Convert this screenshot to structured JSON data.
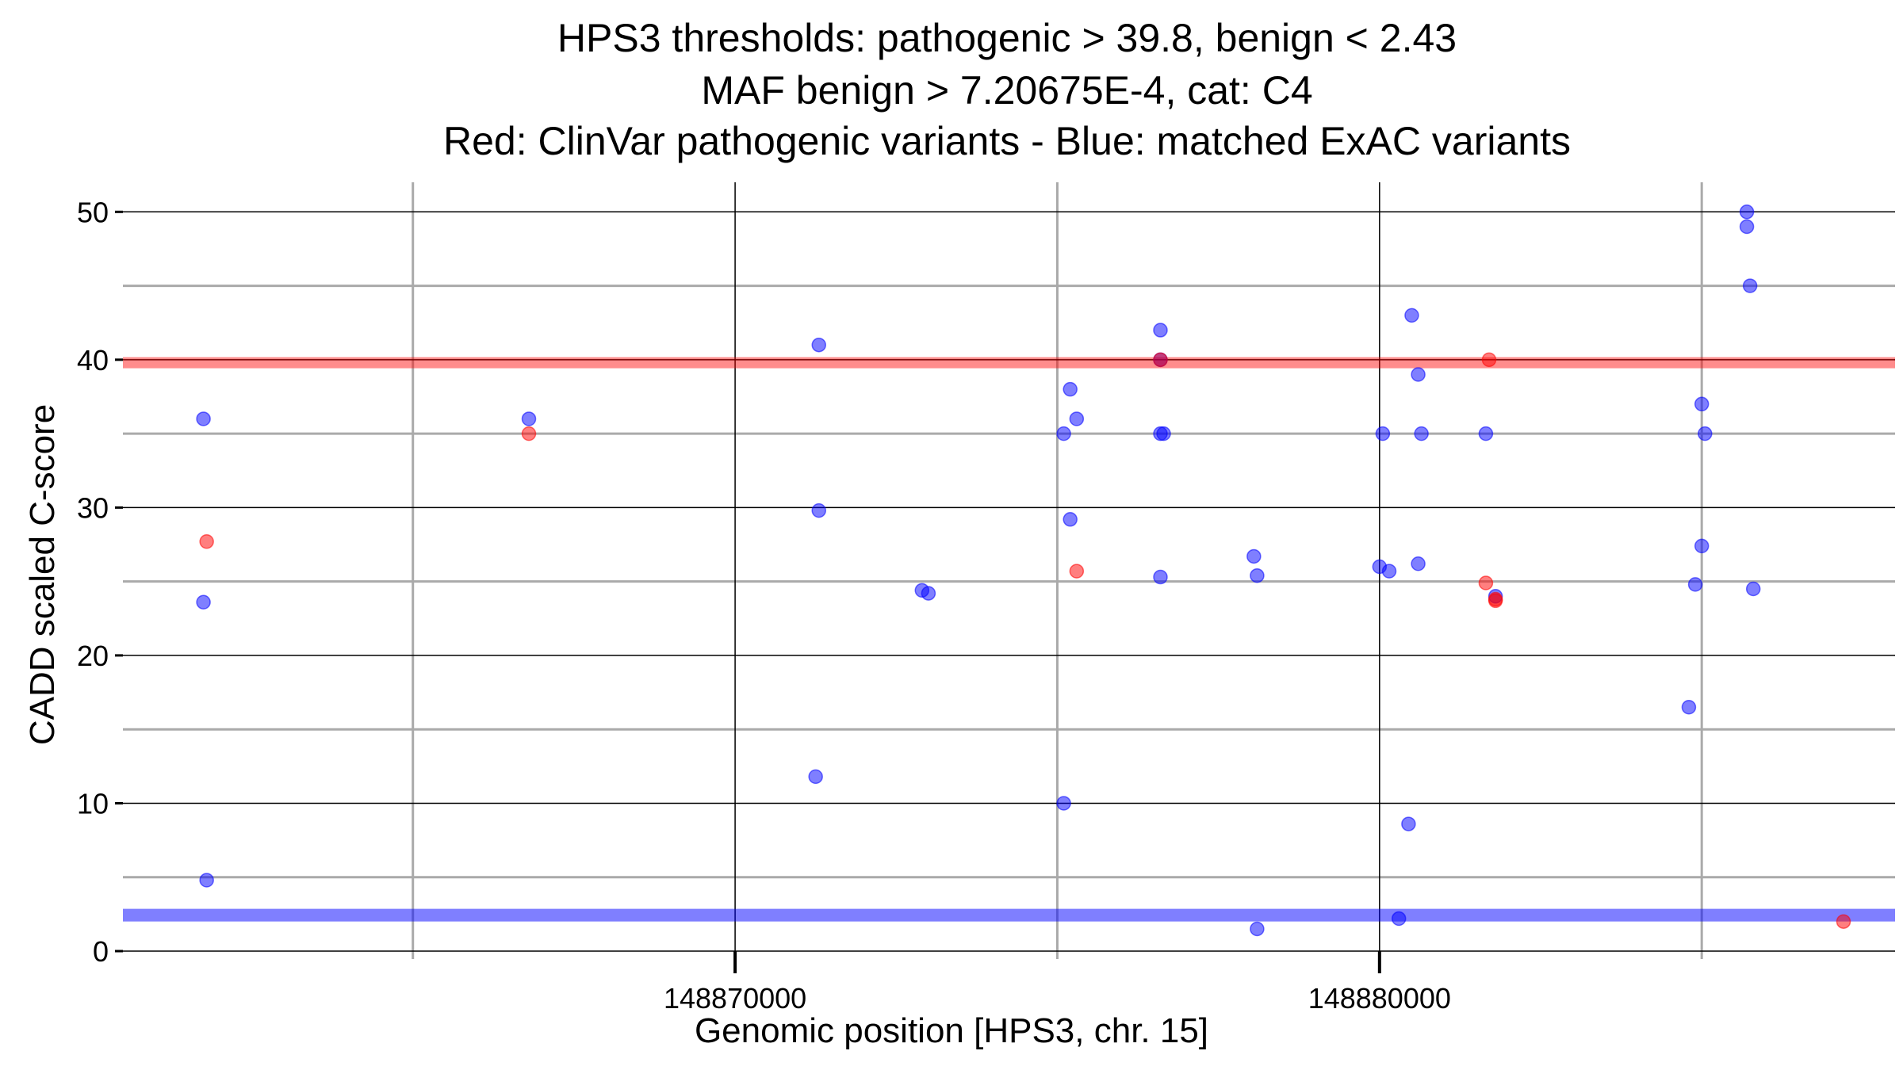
{
  "chart_data": {
    "type": "scatter",
    "title": [
      "HPS3 thresholds: pathogenic > 39.8, benign < 2.43",
      "MAF benign > 7.20675E-4, cat: C4",
      "Red: ClinVar pathogenic variants - Blue: matched ExAC variants"
    ],
    "xlabel": "Genomic position [HPS3, chr. 15]",
    "ylabel": "CADD scaled C-score",
    "xlim": [
      148860500,
      148888000
    ],
    "ylim": [
      0,
      52
    ],
    "x_ticks": [
      148870000,
      148880000
    ],
    "y_ticks": [
      0,
      10,
      20,
      30,
      40,
      50
    ],
    "grid": true,
    "thresholds": {
      "pathogenic": {
        "value": 39.8,
        "color": "#ff0000"
      },
      "benign": {
        "value": 2.43,
        "color": "#0000ff"
      }
    },
    "series": [
      {
        "color": "#ff0000",
        "points": [
          [
            148861800,
            27.7
          ],
          [
            148866800,
            35
          ],
          [
            148875300,
            25.7
          ],
          [
            148876600,
            40
          ],
          [
            148881650,
            24.9
          ],
          [
            148881700,
            40
          ],
          [
            148881800,
            23.7
          ],
          [
            148881800,
            23.8
          ],
          [
            148887200,
            2
          ]
        ]
      },
      {
        "color": "#0000ff",
        "points": [
          [
            148861750,
            36
          ],
          [
            148861750,
            23.6
          ],
          [
            148861800,
            4.8
          ],
          [
            148866800,
            36
          ],
          [
            148871300,
            41
          ],
          [
            148871300,
            29.8
          ],
          [
            148871250,
            11.8
          ],
          [
            148872900,
            24.4
          ],
          [
            148873000,
            24.2
          ],
          [
            148875100,
            35
          ],
          [
            148875200,
            38
          ],
          [
            148875200,
            29.2
          ],
          [
            148875300,
            36
          ],
          [
            148875100,
            10
          ],
          [
            148876600,
            42
          ],
          [
            148876600,
            40
          ],
          [
            148876600,
            35
          ],
          [
            148876650,
            35
          ],
          [
            148876600,
            25.3
          ],
          [
            148878050,
            26.7
          ],
          [
            148878100,
            25.4
          ],
          [
            148878100,
            1.5
          ],
          [
            148880000,
            26
          ],
          [
            148880050,
            35
          ],
          [
            148880150,
            25.7
          ],
          [
            148880300,
            2.2
          ],
          [
            148880500,
            43
          ],
          [
            148880450,
            8.6
          ],
          [
            148880600,
            39
          ],
          [
            148880600,
            26.2
          ],
          [
            148880650,
            35
          ],
          [
            148881650,
            35
          ],
          [
            148881800,
            24
          ],
          [
            148885000,
            27.4
          ],
          [
            148885000,
            37
          ],
          [
            148885050,
            35
          ],
          [
            148884900,
            24.8
          ],
          [
            148884800,
            16.5
          ],
          [
            148885700,
            50
          ],
          [
            148885700,
            49
          ],
          [
            148885750,
            45
          ],
          [
            148885800,
            24.5
          ]
        ]
      }
    ]
  }
}
